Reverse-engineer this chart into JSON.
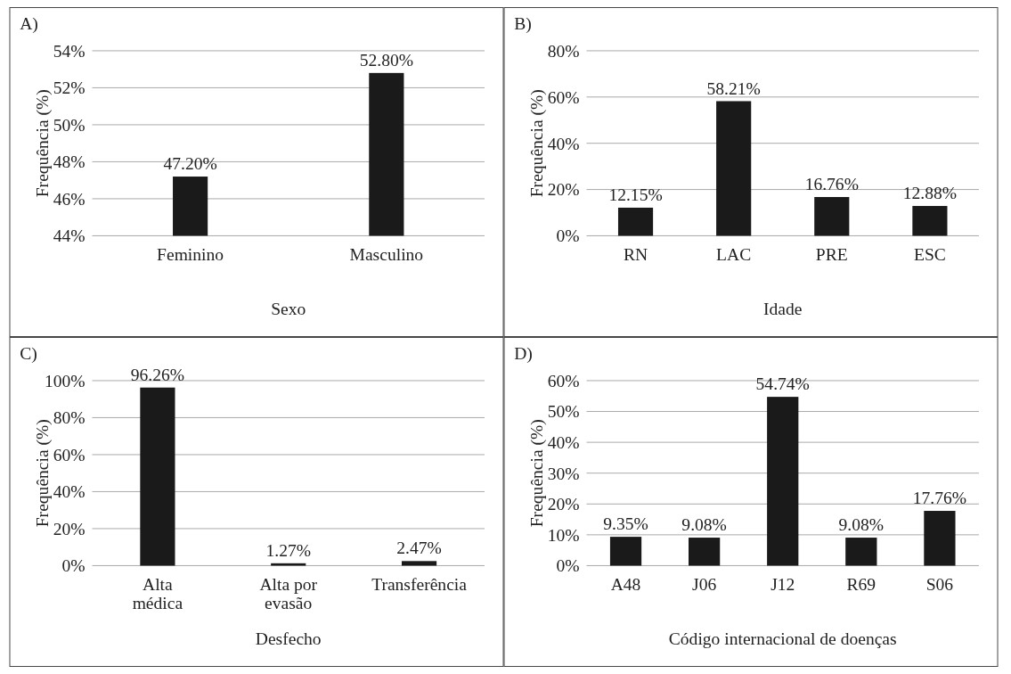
{
  "chart_data": [
    {
      "type": "bar",
      "title": "A)",
      "xlabel": "Sexo",
      "ylabel": "Frequência (%)",
      "categories": [
        "Feminino",
        "Masculino"
      ],
      "values": [
        47.2,
        52.8
      ],
      "value_labels": [
        "47.20%",
        "52.80%"
      ],
      "color": "#1a1a1a",
      "ylim": [
        44,
        54
      ],
      "yticks": [
        {
          "value": 44,
          "label": "44%"
        },
        {
          "value": 46,
          "label": "46%"
        },
        {
          "value": 48,
          "label": "48%"
        },
        {
          "value": 50,
          "label": "50%"
        },
        {
          "value": 52,
          "label": "52%"
        },
        {
          "value": 54,
          "label": "54%"
        }
      ],
      "grid": "y"
    },
    {
      "type": "bar",
      "title": "B)",
      "xlabel": "Idade",
      "ylabel": "Frequência (%)",
      "categories": [
        "RN",
        "LAC",
        "PRE",
        "ESC"
      ],
      "values": [
        12.15,
        58.21,
        16.76,
        12.88
      ],
      "value_labels": [
        "12.15%",
        "58.21%",
        "16.76%",
        "12.88%"
      ],
      "color": "#1a1a1a",
      "ylim": [
        0,
        80
      ],
      "yticks": [
        {
          "value": 0,
          "label": "0%"
        },
        {
          "value": 20,
          "label": "20%"
        },
        {
          "value": 40,
          "label": "40%"
        },
        {
          "value": 60,
          "label": "60%"
        },
        {
          "value": 80,
          "label": "80%"
        }
      ],
      "grid": "y"
    },
    {
      "type": "bar",
      "title": "C)",
      "xlabel": "Desfecho",
      "ylabel": "Frequência (%)",
      "categories": [
        "Alta médica",
        "Alta por evasão",
        "Transferência"
      ],
      "values": [
        96.26,
        1.27,
        2.47
      ],
      "value_labels": [
        "96.26%",
        "1.27%",
        "2.47%"
      ],
      "color": "#1a1a1a",
      "ylim": [
        0,
        100
      ],
      "yticks": [
        {
          "value": 0,
          "label": "0%"
        },
        {
          "value": 20,
          "label": "20%"
        },
        {
          "value": 40,
          "label": "40%"
        },
        {
          "value": 60,
          "label": "60%"
        },
        {
          "value": 80,
          "label": "80%"
        },
        {
          "value": 100,
          "label": "100%"
        }
      ],
      "grid": "y"
    },
    {
      "type": "bar",
      "title": "D)",
      "xlabel": "Código internacional de doenças",
      "ylabel": "Frequência (%)",
      "categories": [
        "A48",
        "J06",
        "J12",
        "R69",
        "S06"
      ],
      "values": [
        9.35,
        9.08,
        54.74,
        9.08,
        17.76
      ],
      "value_labels": [
        "9.35%",
        "9.08%",
        "54.74%",
        "9.08%",
        "17.76%"
      ],
      "color": "#1a1a1a",
      "ylim": [
        0,
        60
      ],
      "yticks": [
        {
          "value": 0,
          "label": "0%"
        },
        {
          "value": 10,
          "label": "10%"
        },
        {
          "value": 20,
          "label": "20%"
        },
        {
          "value": 30,
          "label": "30%"
        },
        {
          "value": 40,
          "label": "40%"
        },
        {
          "value": 50,
          "label": "50%"
        },
        {
          "value": 60,
          "label": "60%"
        }
      ],
      "grid": "y"
    }
  ]
}
